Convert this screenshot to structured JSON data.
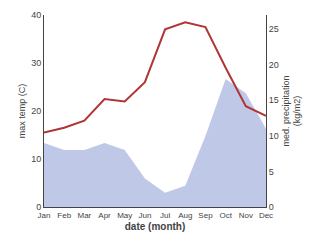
{
  "chart_data": {
    "type": "line",
    "xlabel": "date (month)",
    "ylabel": "max temp (C)",
    "y2label": "med. precipitation\n(kg/m2)",
    "categories": [
      "Jan",
      "Feb",
      "Mar",
      "Apr",
      "May",
      "Jun",
      "Jul",
      "Aug",
      "Sep",
      "Oct",
      "Nov",
      "Dec"
    ],
    "series": [
      {
        "type": "area",
        "color": "#c0c8e8",
        "axis": "y2",
        "values": [
          9,
          8,
          8,
          9,
          8,
          4,
          2,
          3,
          10,
          18,
          16,
          11
        ]
      },
      {
        "type": "line",
        "color": "#b03535",
        "values": [
          15.5,
          16.5,
          18,
          22.5,
          22,
          26,
          37,
          38.5,
          37.5,
          29,
          21,
          19
        ]
      }
    ],
    "ylim": [
      0,
      40
    ],
    "yticks": [
      0,
      10,
      20,
      30,
      40
    ],
    "y2lim": [
      0,
      27
    ],
    "y2ticks": [
      0,
      5,
      10,
      15,
      20,
      25
    ],
    "grid": false
  }
}
